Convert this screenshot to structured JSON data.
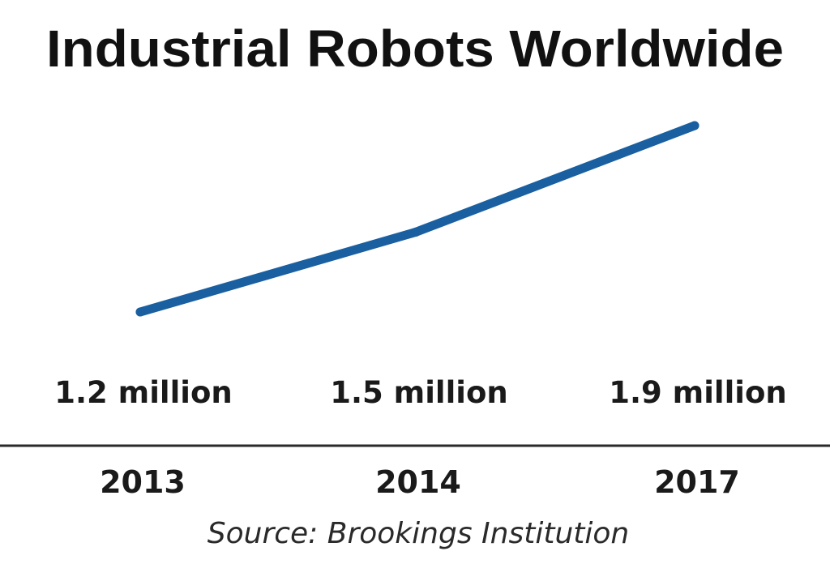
{
  "chart_data": {
    "type": "line",
    "title": "Industrial Robots Worldwide",
    "categories": [
      "2013",
      "2014",
      "2017"
    ],
    "series": [
      {
        "name": "Industrial robots",
        "values": [
          1.2,
          1.5,
          1.9
        ],
        "data_labels": [
          "1.2 million",
          "1.5 million",
          "1.9 million"
        ],
        "color": "#1a5fa0"
      }
    ],
    "xlabel": "",
    "ylabel": "",
    "ylim": [
      0.8,
      2.0
    ],
    "grid": false,
    "legend": "none",
    "source": "Source: Brookings Institution"
  },
  "colors": {
    "line": "#1a5fa0",
    "axis": "#2a2a2a",
    "text": "#1a1a1a"
  }
}
